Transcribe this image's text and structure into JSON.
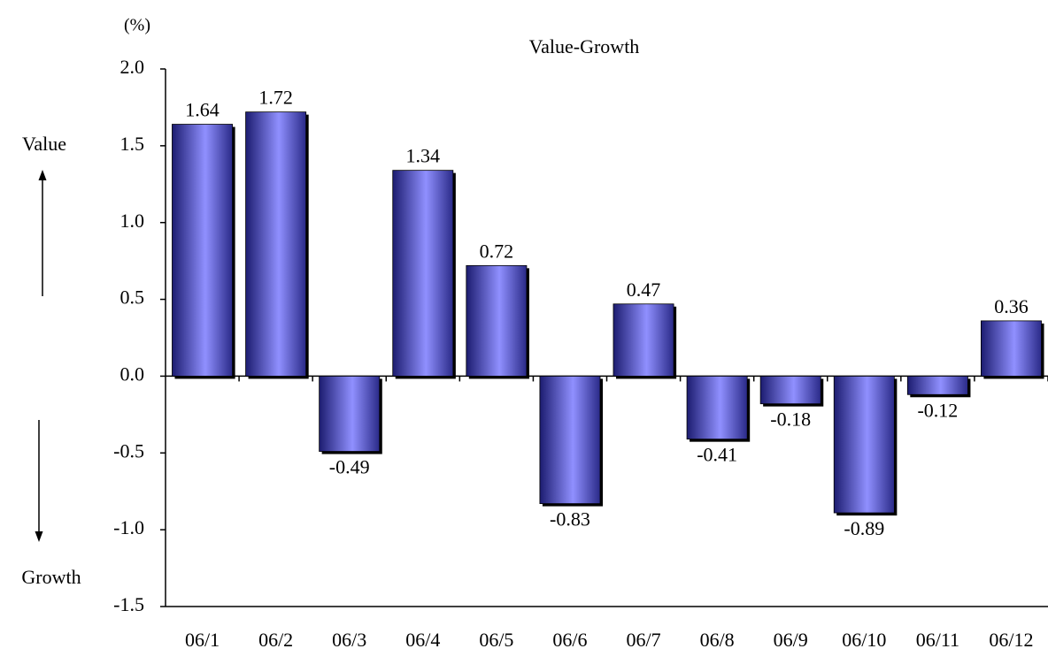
{
  "chart_data": {
    "type": "bar",
    "unit_label": "(%)",
    "subtitle": "Value-Growth",
    "annotations": [
      "Value",
      "Growth"
    ],
    "categories": [
      "06/1",
      "06/2",
      "06/3",
      "06/4",
      "06/5",
      "06/6",
      "06/7",
      "06/8",
      "06/9",
      "06/10",
      "06/11",
      "06/12"
    ],
    "values": [
      1.64,
      1.72,
      -0.49,
      1.34,
      0.72,
      -0.83,
      0.47,
      -0.41,
      -0.18,
      -0.89,
      -0.12,
      0.36
    ],
    "color": "#8080ff",
    "ylim": [
      -1.5,
      2.0
    ],
    "yticks": [
      {
        "value": -1.5,
        "label": "-1.5"
      },
      {
        "value": -1.0,
        "label": "-1.0"
      },
      {
        "value": -0.5,
        "label": "-0.5"
      },
      {
        "value": 0,
        "label": "0.0"
      },
      {
        "value": 0.5,
        "label": "0.5"
      },
      {
        "value": 1.0,
        "label": "1.0"
      },
      {
        "value": 1.5,
        "label": "1.5"
      },
      {
        "value": 2.0,
        "label": "2.0"
      }
    ],
    "grid": false
  }
}
